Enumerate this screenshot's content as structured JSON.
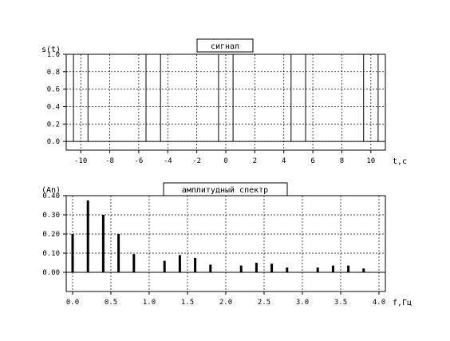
{
  "chart_data": [
    {
      "type": "line",
      "title": "сигнал",
      "ylabel": "s(t)",
      "xlabel": "t,c",
      "xlim": [
        -11,
        11
      ],
      "ylim": [
        -0.1,
        1.0
      ],
      "grid": true,
      "x_ticks": [
        "-10",
        "-8",
        "-6",
        "-4",
        "-2",
        "0",
        "2",
        "4",
        "6",
        "8",
        "10"
      ],
      "y_ticks": [
        "1.0",
        "0.8",
        "0.6",
        "0.4",
        "0.2",
        "0.0"
      ],
      "pulses": [
        {
          "start": -10.5,
          "end": -9.5
        },
        {
          "start": -5.5,
          "end": -4.5
        },
        {
          "start": -0.5,
          "end": 0.5
        },
        {
          "start": 4.5,
          "end": 5.5
        },
        {
          "start": 9.5,
          "end": 10.5
        }
      ],
      "amplitude": 1.0
    },
    {
      "type": "bar",
      "title": "амплитудный спектр",
      "ylabel": "(An)",
      "xlabel": "f,Гц",
      "xlim": [
        0,
        4.0
      ],
      "ylim": [
        -0.1,
        0.4
      ],
      "grid": true,
      "x_ticks": [
        "0.0",
        "0.5",
        "1.0",
        "1.5",
        "2.0",
        "2.5",
        "3.0",
        "3.5",
        "4.0"
      ],
      "y_ticks": [
        "0.40",
        "0.30",
        "0.20",
        "0.10",
        "0.00"
      ],
      "x": [
        0.0,
        0.2,
        0.4,
        0.6,
        0.8,
        1.2,
        1.4,
        1.6,
        1.8,
        2.2,
        2.4,
        2.6,
        2.8,
        3.2,
        3.4,
        3.6,
        3.8
      ],
      "values": [
        0.2,
        0.375,
        0.3,
        0.2,
        0.095,
        0.06,
        0.09,
        0.075,
        0.04,
        0.035,
        0.05,
        0.045,
        0.025,
        0.025,
        0.035,
        0.035,
        0.02
      ]
    }
  ]
}
